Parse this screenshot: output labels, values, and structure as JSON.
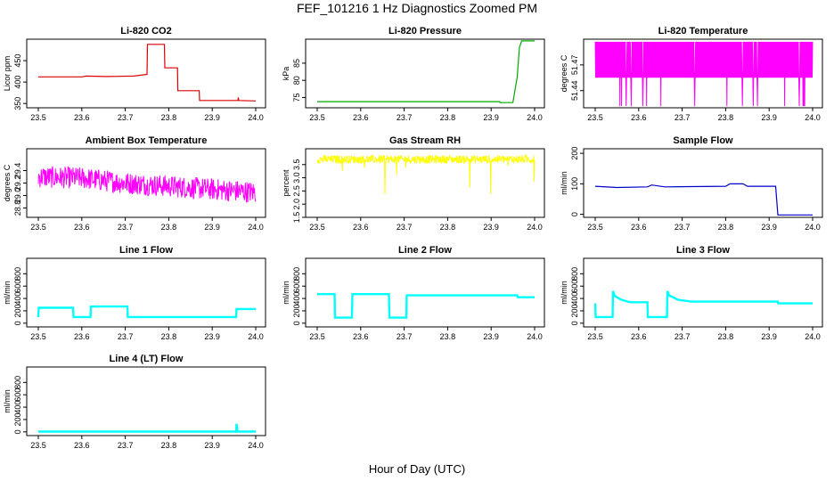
{
  "page": {
    "title": "FEF_101216  1 Hz Diagnostics Zoomed PM",
    "xlabel": "Hour of Day (UTC)"
  },
  "chart_data": [
    {
      "type": "line",
      "title": "Li-820 CO2",
      "ylabel": "Licor ppm",
      "color": "#dd0000",
      "xlim": [
        23.5,
        24.0
      ],
      "ylim": [
        340,
        500
      ],
      "xticks": [
        "23.5",
        "23.6",
        "23.7",
        "23.8",
        "23.9",
        "24.0"
      ],
      "yticks": [
        {
          "v": 350,
          "label": "350"
        },
        {
          "v": 400,
          "label": "400"
        },
        {
          "v": 450,
          "label": "450"
        }
      ],
      "series": [
        {
          "x": [
            23.5,
            23.6,
            23.61,
            23.65,
            23.66,
            23.72,
            23.75,
            23.751,
            23.79,
            23.791,
            23.82,
            23.821,
            23.87,
            23.871,
            23.959,
            23.96,
            23.961,
            24.0
          ],
          "y": [
            412,
            412,
            414,
            413,
            413,
            414,
            418,
            488,
            488,
            433,
            433,
            380,
            380,
            357,
            357,
            364,
            357,
            356
          ]
        }
      ]
    },
    {
      "type": "line",
      "title": "Li-820 Pressure",
      "ylabel": "kPa",
      "color": "#00aa00",
      "xlim": [
        23.5,
        24.0
      ],
      "ylim": [
        72,
        92
      ],
      "xticks": [
        "23.5",
        "23.6",
        "23.7",
        "23.8",
        "23.9",
        "24.0"
      ],
      "yticks": [
        {
          "v": 75,
          "label": "75"
        },
        {
          "v": 80,
          "label": "80"
        },
        {
          "v": 85,
          "label": "85"
        }
      ],
      "series": [
        {
          "x": [
            23.5,
            23.92,
            23.921,
            23.95,
            23.96,
            23.965,
            23.97,
            24.0
          ],
          "y": [
            73.8,
            73.8,
            73.5,
            73.5,
            81,
            89.5,
            91.5,
            91.5
          ]
        }
      ]
    },
    {
      "type": "line",
      "title": "Li-820 Temperature",
      "ylabel": "degrees C",
      "color": "#ff00ff",
      "xlim": [
        23.5,
        24.0
      ],
      "ylim": [
        51.42,
        51.5
      ],
      "xticks": [
        "23.5",
        "23.6",
        "23.7",
        "23.8",
        "23.9",
        "24.0"
      ],
      "yticks": [
        {
          "v": 51.44,
          "label": "51.44"
        },
        {
          "v": 51.47,
          "label": "51.47"
        }
      ],
      "series": [
        {
          "x": [
            23.5,
            24.0
          ],
          "y": [
            51.455,
            51.497
          ]
        }
      ]
    },
    {
      "type": "line",
      "title": "Ambient Box Temperature",
      "ylabel": "degrees C",
      "color": "#ff00ff",
      "xlim": [
        23.5,
        24.0
      ],
      "ylim": [
        28.65,
        29.75
      ],
      "xticks": [
        "23.5",
        "23.6",
        "23.7",
        "23.8",
        "23.9",
        "24.0"
      ],
      "yticks": [
        {
          "v": 28.8,
          "label": "28.8"
        },
        {
          "v": 29.0,
          "label": "29.0"
        },
        {
          "v": 29.2,
          "label": "29.2"
        },
        {
          "v": 29.4,
          "label": "29.4"
        }
      ],
      "series": [
        {
          "x": [
            23.5,
            23.6,
            23.7,
            23.8,
            23.9,
            24.0
          ],
          "y": [
            29.3,
            29.28,
            29.2,
            29.15,
            29.1,
            29.05
          ]
        }
      ]
    },
    {
      "type": "line",
      "title": "Gas Stream RH",
      "ylabel": "percent",
      "color": "#ffff00",
      "xlim": [
        23.5,
        24.0
      ],
      "ylim": [
        1.5,
        4.1
      ],
      "xticks": [
        "23.5",
        "23.6",
        "23.7",
        "23.8",
        "23.9",
        "24.0"
      ],
      "yticks": [
        {
          "v": 1.5,
          "label": "1.5"
        },
        {
          "v": 2.0,
          "label": "2.0"
        },
        {
          "v": 2.5,
          "label": "2.5"
        },
        {
          "v": 3.0,
          "label": "3.0"
        },
        {
          "v": 3.5,
          "label": "3.5"
        }
      ],
      "series": [
        {
          "x": [
            23.5,
            24.0
          ],
          "y": [
            3.7,
            3.7
          ]
        }
      ]
    },
    {
      "type": "line",
      "title": "Sample Flow",
      "ylabel": "ml/min",
      "color": "#0000cc",
      "xlim": [
        23.5,
        24.0
      ],
      "ylim": [
        -10,
        215
      ],
      "xticks": [
        "23.5",
        "23.6",
        "23.7",
        "23.8",
        "23.9",
        "24.0"
      ],
      "yticks": [
        {
          "v": 0,
          "label": "0"
        },
        {
          "v": 100,
          "label": "100"
        },
        {
          "v": 200,
          "label": "200"
        }
      ],
      "series": [
        {
          "x": [
            23.5,
            23.55,
            23.62,
            23.63,
            23.66,
            23.8,
            23.81,
            23.84,
            23.85,
            23.915,
            23.92,
            24.0
          ],
          "y": [
            92,
            88,
            90,
            96,
            90,
            92,
            100,
            100,
            92,
            92,
            -2,
            -2
          ]
        }
      ]
    },
    {
      "type": "line",
      "title": "Line 1 Flow",
      "ylabel": "ml/min",
      "color": "#00ffff",
      "xlim": [
        23.5,
        24.0
      ],
      "ylim": [
        -60,
        1050
      ],
      "xticks": [
        "23.5",
        "23.6",
        "23.7",
        "23.8",
        "23.9",
        "24.0"
      ],
      "yticks": [
        {
          "v": 0,
          "label": "0"
        },
        {
          "v": 200,
          "label": "200"
        },
        {
          "v": 400,
          "label": "400"
        },
        {
          "v": 600,
          "label": "600"
        },
        {
          "v": 800,
          "label": "800"
        }
      ],
      "series": [
        {
          "x": [
            23.5,
            23.501,
            23.58,
            23.581,
            23.62,
            23.621,
            23.705,
            23.706,
            23.955,
            23.956,
            24.0
          ],
          "y": [
            100,
            250,
            250,
            100,
            100,
            270,
            270,
            100,
            100,
            230,
            230
          ]
        }
      ]
    },
    {
      "type": "line",
      "title": "Line 2 Flow",
      "ylabel": "ml/min",
      "color": "#00ffff",
      "xlim": [
        23.5,
        24.0
      ],
      "ylim": [
        -60,
        1050
      ],
      "xticks": [
        "23.5",
        "23.6",
        "23.7",
        "23.8",
        "23.9",
        "24.0"
      ],
      "yticks": [
        {
          "v": 0,
          "label": "0"
        },
        {
          "v": 200,
          "label": "200"
        },
        {
          "v": 400,
          "label": "400"
        },
        {
          "v": 600,
          "label": "600"
        },
        {
          "v": 800,
          "label": "800"
        }
      ],
      "series": [
        {
          "x": [
            23.5,
            23.54,
            23.541,
            23.58,
            23.581,
            23.665,
            23.666,
            23.705,
            23.706,
            23.96,
            23.961,
            24.0
          ],
          "y": [
            470,
            470,
            90,
            90,
            470,
            470,
            90,
            90,
            450,
            450,
            420,
            420
          ]
        }
      ]
    },
    {
      "type": "line",
      "title": "Line 3 Flow",
      "ylabel": "ml/min",
      "color": "#00ffff",
      "xlim": [
        23.5,
        24.0
      ],
      "ylim": [
        -60,
        1050
      ],
      "xticks": [
        "23.5",
        "23.6",
        "23.7",
        "23.8",
        "23.9",
        "24.0"
      ],
      "yticks": [
        {
          "v": 0,
          "label": "0"
        },
        {
          "v": 200,
          "label": "200"
        },
        {
          "v": 400,
          "label": "400"
        },
        {
          "v": 600,
          "label": "600"
        },
        {
          "v": 800,
          "label": "800"
        }
      ],
      "series": [
        {
          "x": [
            23.5,
            23.501,
            23.54,
            23.541,
            23.545,
            23.56,
            23.58,
            23.62,
            23.621,
            23.665,
            23.666,
            23.67,
            23.69,
            23.72,
            23.92,
            23.921,
            24.0
          ],
          "y": [
            320,
            100,
            100,
            520,
            440,
            380,
            340,
            340,
            100,
            100,
            520,
            450,
            380,
            350,
            350,
            320,
            320
          ]
        }
      ]
    },
    {
      "type": "line",
      "title": "Line 4 (LT) Flow",
      "ylabel": "ml/min",
      "color": "#00ffff",
      "xlim": [
        23.5,
        24.0
      ],
      "ylim": [
        -60,
        1050
      ],
      "xticks": [
        "23.5",
        "23.6",
        "23.7",
        "23.8",
        "23.9",
        "24.0"
      ],
      "yticks": [
        {
          "v": 0,
          "label": "0"
        },
        {
          "v": 200,
          "label": "200"
        },
        {
          "v": 400,
          "label": "400"
        },
        {
          "v": 600,
          "label": "600"
        },
        {
          "v": 800,
          "label": "800"
        }
      ],
      "series": [
        {
          "x": [
            23.5,
            23.955,
            23.956,
            23.958,
            23.96,
            24.0
          ],
          "y": [
            5,
            5,
            130,
            5,
            5,
            5
          ]
        }
      ]
    }
  ]
}
